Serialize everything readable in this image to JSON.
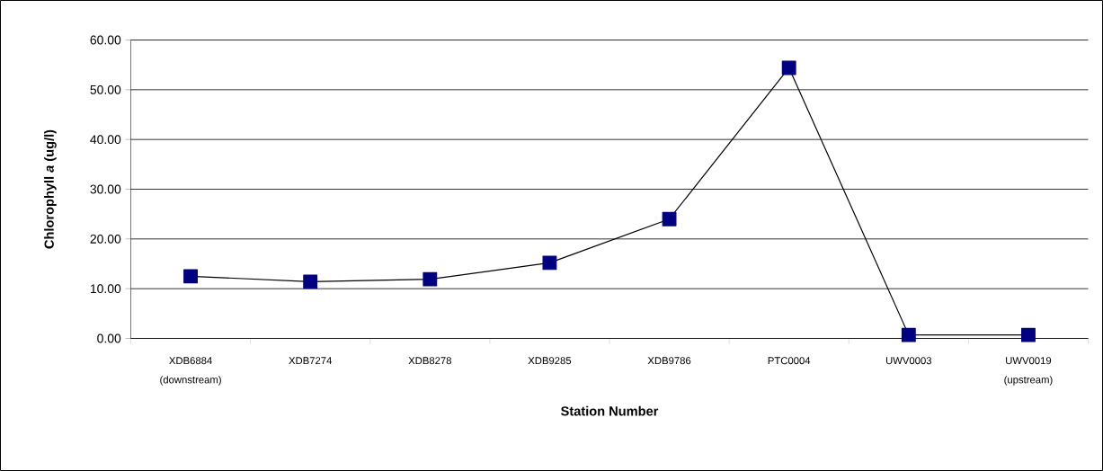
{
  "chart_data": {
    "type": "line",
    "xlabel": "Station Number",
    "ylabel": "Chlorophyll *a*  (ug/l)",
    "categories": [
      "XDB6884 (downstream)",
      "XDB7274",
      "XDB8278",
      "XDB9285",
      "XDB9786",
      "PTC0004",
      "UWV0003",
      "UWV0019 (upstream)"
    ],
    "series": [
      {
        "color": "#000080",
        "values": [
          12.5,
          11.4,
          11.9,
          15.2,
          24.0,
          54.4,
          0.7,
          0.7
        ]
      }
    ],
    "ylim": [
      0,
      60
    ],
    "yticks": [
      {
        "value": 0,
        "label": "0.00"
      },
      {
        "value": 10,
        "label": "10.00"
      },
      {
        "value": 20,
        "label": "20.00"
      },
      {
        "value": 30,
        "label": "30.00"
      },
      {
        "value": 40,
        "label": "40.00"
      },
      {
        "value": 50,
        "label": "50.00"
      },
      {
        "value": 60,
        "label": "60.00"
      }
    ],
    "grid": "y",
    "marker": "square",
    "line_style": "solid"
  }
}
